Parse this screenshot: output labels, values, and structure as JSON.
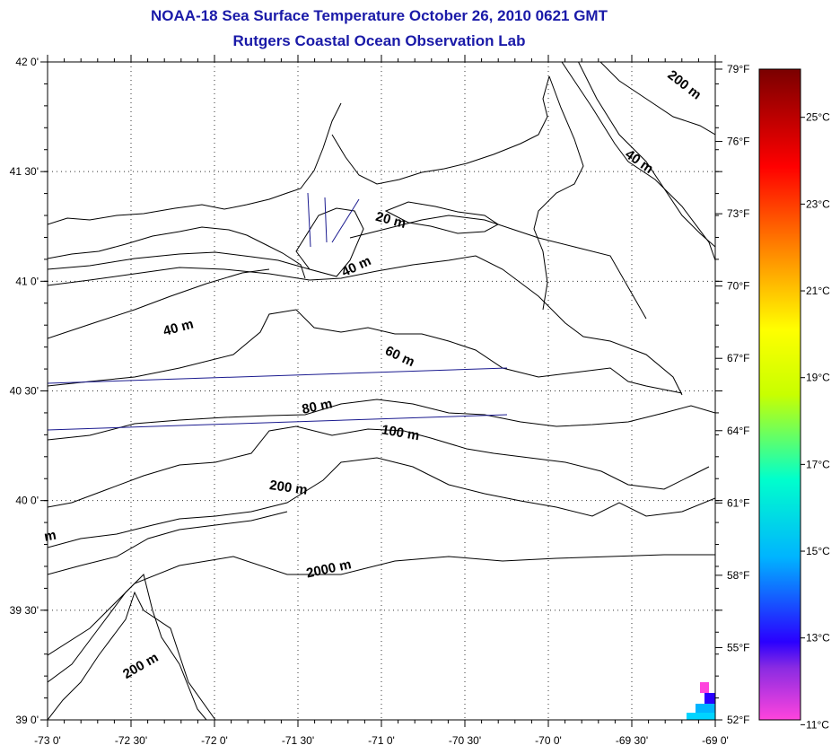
{
  "title": "NOAA-18 Sea Surface Temperature October 26, 2010 0621 GMT",
  "subtitle": "Rutgers Coastal Ocean Observation Lab",
  "map": {
    "lat_labels": [
      "42 0'",
      "41 30'",
      "41 0'",
      "40 30'",
      "40 0'",
      "39 30'",
      "39 0'"
    ],
    "lon_labels": [
      "-73 0'",
      "-72 30'",
      "-72 0'",
      "-71 30'",
      "-71 0'",
      "-70 30'",
      "-70 0'",
      "-69 30'",
      "-69 0'"
    ],
    "lat_range": [
      39.0,
      42.0
    ],
    "lon_range": [
      -73.0,
      -69.0
    ],
    "grid": "dotted",
    "depth_contours": [
      {
        "label": "200 m",
        "lon": -69.2,
        "lat": 41.88
      },
      {
        "label": "40 m",
        "lon": -69.47,
        "lat": 41.53
      },
      {
        "label": "20 m",
        "lon": -70.95,
        "lat": 41.26
      },
      {
        "label": "40 m",
        "lon": -71.14,
        "lat": 41.05
      },
      {
        "label": "40 m",
        "lon": -72.21,
        "lat": 40.77
      },
      {
        "label": "60 m",
        "lon": -70.9,
        "lat": 40.64
      },
      {
        "label": "80 m",
        "lon": -71.38,
        "lat": 40.41
      },
      {
        "label": "100 m",
        "lon": -70.89,
        "lat": 40.29
      },
      {
        "label": "200 m",
        "lon": -71.56,
        "lat": 40.04
      },
      {
        "label": "2000 m",
        "lon": -71.31,
        "lat": 39.67
      },
      {
        "label": "200 m",
        "lon": -72.43,
        "lat": 39.23
      },
      {
        "label": "m",
        "lon": -72.98,
        "lat": 39.82
      }
    ]
  },
  "colorbar": {
    "f_labels": [
      "79°F",
      "76°F",
      "73°F",
      "70°F",
      "67°F",
      "64°F",
      "61°F",
      "58°F",
      "55°F",
      "52°F"
    ],
    "c_labels": [
      "25°C",
      "23°C",
      "21°C",
      "19°C",
      "17°C",
      "15°C",
      "13°C",
      "11°C"
    ],
    "range_f": [
      52,
      79
    ],
    "colors": [
      "#ff44dd",
      "#2a00ff",
      "#00b4ff",
      "#00ffcc",
      "#c8ff00",
      "#ff8800",
      "#ff0000",
      "#7a0000"
    ]
  }
}
